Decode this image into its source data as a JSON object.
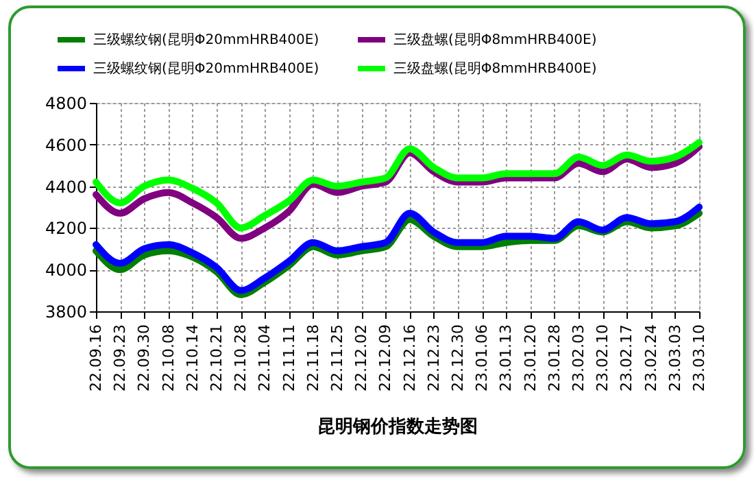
{
  "chart_data": {
    "type": "line",
    "title": "昆明钢价指数走势图",
    "categories": [
      "22.09.16",
      "22.09.23",
      "22.09.30",
      "22.10.08",
      "22.10.14",
      "22.10.21",
      "22.10.28",
      "22.11.04",
      "22.11.11",
      "22.11.18",
      "22.11.25",
      "22.12.02",
      "22.12.09",
      "22.12.16",
      "22.12.23",
      "22.12.30",
      "23.01.06",
      "23.01.13",
      "23.01.20",
      "23.01.28",
      "23.02.03",
      "23.02.10",
      "23.02.17",
      "23.02.24",
      "23.03.03",
      "23.03.10"
    ],
    "series": [
      {
        "name": "三级螺纹钢(昆明Φ20mmHRB400E)",
        "color": "#008000",
        "values": [
          4090,
          4000,
          4070,
          4090,
          4060,
          3990,
          3880,
          3940,
          4020,
          4110,
          4070,
          4090,
          4110,
          4240,
          4160,
          4110,
          4110,
          4130,
          4140,
          4140,
          4210,
          4180,
          4230,
          4200,
          4210,
          4270
        ]
      },
      {
        "name": "三级螺纹钢(昆明Φ20mmHRB400E)",
        "color": "#0000ff",
        "values": [
          4120,
          4030,
          4100,
          4120,
          4080,
          4010,
          3900,
          3960,
          4040,
          4130,
          4090,
          4110,
          4130,
          4270,
          4180,
          4130,
          4130,
          4160,
          4160,
          4150,
          4230,
          4190,
          4250,
          4220,
          4230,
          4300
        ]
      },
      {
        "name": "三级盘螺(昆明Φ8mmHRB400E)",
        "color": "#800080",
        "values": [
          4360,
          4270,
          4340,
          4370,
          4320,
          4250,
          4150,
          4200,
          4280,
          4410,
          4370,
          4400,
          4420,
          4560,
          4470,
          4420,
          4420,
          4440,
          4440,
          4440,
          4510,
          4470,
          4530,
          4490,
          4510,
          4590
        ]
      },
      {
        "name": "三级盘螺(昆明Φ8mmHRB400E)",
        "color": "#00ff00",
        "values": [
          4420,
          4320,
          4400,
          4430,
          4390,
          4320,
          4200,
          4260,
          4330,
          4430,
          4400,
          4420,
          4440,
          4580,
          4490,
          4440,
          4440,
          4460,
          4460,
          4460,
          4540,
          4500,
          4550,
          4520,
          4540,
          4610
        ]
      }
    ],
    "ylim": [
      3800,
      4800
    ],
    "yticks": [
      3800,
      4000,
      4200,
      4400,
      4600,
      4800
    ],
    "grid": true,
    "legend": "top"
  }
}
